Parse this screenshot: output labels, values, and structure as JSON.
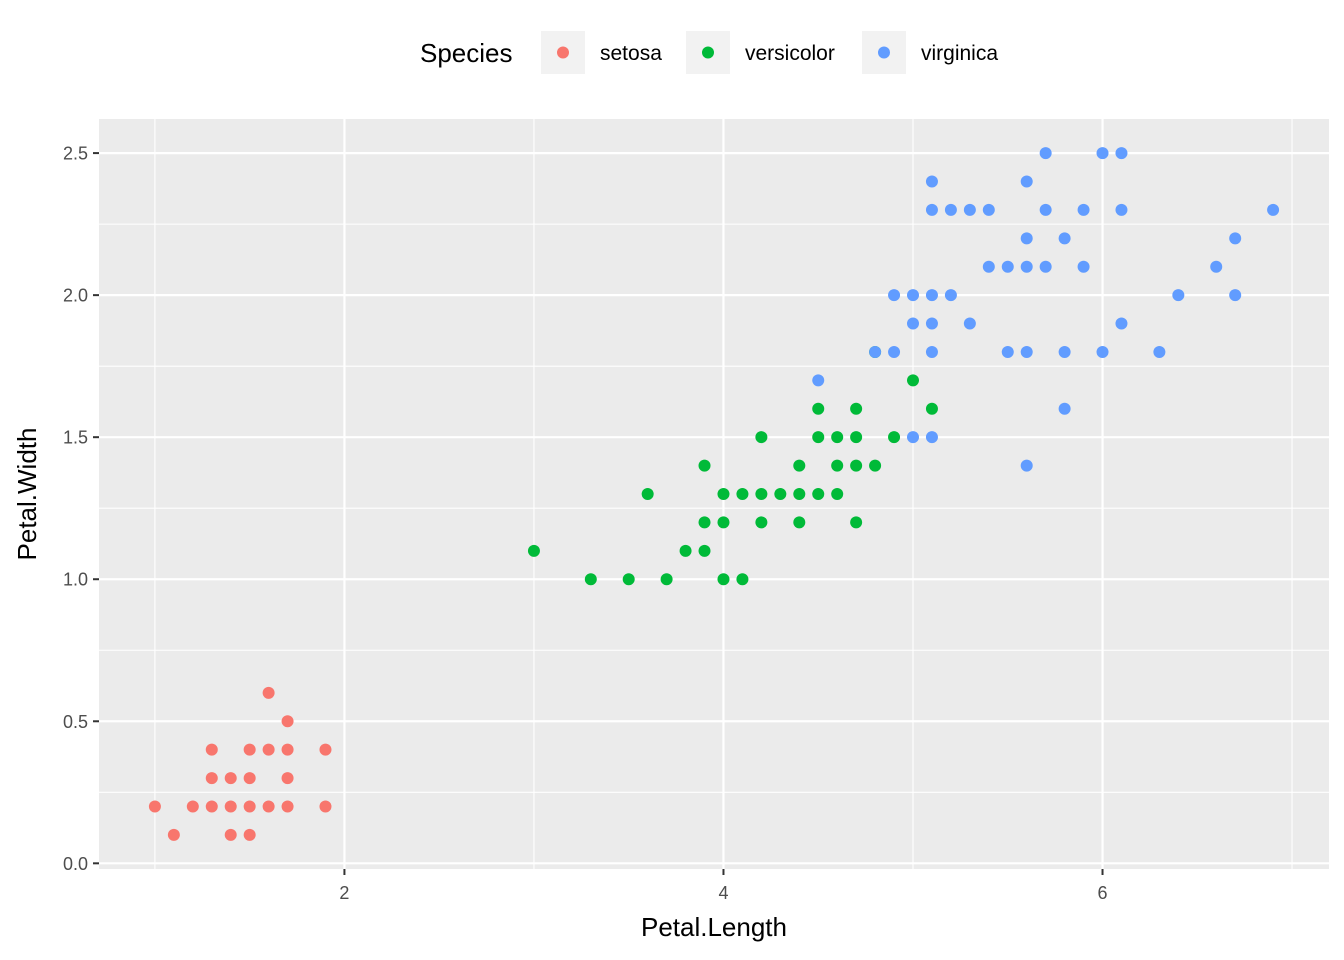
{
  "chart_data": {
    "type": "scatter",
    "title": "",
    "xlabel": "Petal.Length",
    "ylabel": "Petal.Width",
    "xlim": [
      0.705,
      7.195
    ],
    "ylim": [
      -0.02,
      2.62
    ],
    "x_ticks": [
      2,
      4,
      6
    ],
    "y_ticks": [
      0.0,
      0.5,
      1.0,
      1.5,
      2.0,
      2.5
    ],
    "x_tick_labels": [
      "2",
      "4",
      "6"
    ],
    "y_tick_labels": [
      "0.0",
      "0.5",
      "1.0",
      "1.5",
      "2.0",
      "2.5"
    ],
    "grid": true,
    "legend": {
      "title": "Species",
      "position": "top"
    },
    "series": [
      {
        "name": "setosa",
        "color": "#F8766D",
        "points": [
          [
            1.0,
            0.2
          ],
          [
            1.1,
            0.1
          ],
          [
            1.2,
            0.2
          ],
          [
            1.3,
            0.2
          ],
          [
            1.3,
            0.3
          ],
          [
            1.3,
            0.4
          ],
          [
            1.4,
            0.1
          ],
          [
            1.4,
            0.2
          ],
          [
            1.4,
            0.3
          ],
          [
            1.5,
            0.1
          ],
          [
            1.5,
            0.2
          ],
          [
            1.5,
            0.3
          ],
          [
            1.5,
            0.4
          ],
          [
            1.6,
            0.2
          ],
          [
            1.6,
            0.4
          ],
          [
            1.6,
            0.6
          ],
          [
            1.7,
            0.2
          ],
          [
            1.7,
            0.3
          ],
          [
            1.7,
            0.4
          ],
          [
            1.7,
            0.5
          ],
          [
            1.9,
            0.2
          ],
          [
            1.9,
            0.4
          ]
        ]
      },
      {
        "name": "versicolor",
        "color": "#00BA38",
        "points": [
          [
            3.0,
            1.1
          ],
          [
            3.3,
            1.0
          ],
          [
            3.5,
            1.0
          ],
          [
            3.6,
            1.3
          ],
          [
            3.7,
            1.0
          ],
          [
            3.8,
            1.1
          ],
          [
            3.9,
            1.1
          ],
          [
            3.9,
            1.2
          ],
          [
            3.9,
            1.4
          ],
          [
            4.0,
            1.0
          ],
          [
            4.0,
            1.2
          ],
          [
            4.0,
            1.3
          ],
          [
            4.1,
            1.0
          ],
          [
            4.1,
            1.3
          ],
          [
            4.2,
            1.2
          ],
          [
            4.2,
            1.3
          ],
          [
            4.2,
            1.5
          ],
          [
            4.3,
            1.3
          ],
          [
            4.4,
            1.2
          ],
          [
            4.4,
            1.3
          ],
          [
            4.4,
            1.4
          ],
          [
            4.5,
            1.3
          ],
          [
            4.5,
            1.5
          ],
          [
            4.5,
            1.6
          ],
          [
            4.6,
            1.3
          ],
          [
            4.6,
            1.4
          ],
          [
            4.6,
            1.5
          ],
          [
            4.7,
            1.2
          ],
          [
            4.7,
            1.4
          ],
          [
            4.7,
            1.5
          ],
          [
            4.7,
            1.6
          ],
          [
            4.8,
            1.4
          ],
          [
            4.8,
            1.8
          ],
          [
            4.9,
            1.5
          ],
          [
            5.0,
            1.7
          ],
          [
            5.1,
            1.6
          ]
        ]
      },
      {
        "name": "virginica",
        "color": "#619CFF",
        "points": [
          [
            4.5,
            1.7
          ],
          [
            4.8,
            1.8
          ],
          [
            4.9,
            1.8
          ],
          [
            4.9,
            2.0
          ],
          [
            5.0,
            1.5
          ],
          [
            5.0,
            1.9
          ],
          [
            5.0,
            2.0
          ],
          [
            5.1,
            1.5
          ],
          [
            5.1,
            1.8
          ],
          [
            5.1,
            1.9
          ],
          [
            5.1,
            2.0
          ],
          [
            5.1,
            2.3
          ],
          [
            5.1,
            2.4
          ],
          [
            5.2,
            2.0
          ],
          [
            5.2,
            2.3
          ],
          [
            5.3,
            1.9
          ],
          [
            5.3,
            2.3
          ],
          [
            5.4,
            2.1
          ],
          [
            5.4,
            2.3
          ],
          [
            5.5,
            1.8
          ],
          [
            5.5,
            2.1
          ],
          [
            5.6,
            1.4
          ],
          [
            5.6,
            1.8
          ],
          [
            5.6,
            2.1
          ],
          [
            5.6,
            2.2
          ],
          [
            5.6,
            2.4
          ],
          [
            5.7,
            2.1
          ],
          [
            5.7,
            2.3
          ],
          [
            5.7,
            2.5
          ],
          [
            5.8,
            1.6
          ],
          [
            5.8,
            1.8
          ],
          [
            5.8,
            2.2
          ],
          [
            5.9,
            2.1
          ],
          [
            5.9,
            2.3
          ],
          [
            6.0,
            1.8
          ],
          [
            6.0,
            2.5
          ],
          [
            6.1,
            1.9
          ],
          [
            6.1,
            2.3
          ],
          [
            6.1,
            2.5
          ],
          [
            6.3,
            1.8
          ],
          [
            6.4,
            2.0
          ],
          [
            6.6,
            2.1
          ],
          [
            6.7,
            2.0
          ],
          [
            6.7,
            2.2
          ],
          [
            6.9,
            2.3
          ]
        ]
      }
    ]
  },
  "colors": {
    "panel_background": "#EBEBEB",
    "grid_major": "#FFFFFF",
    "legend_key_background": "#F2F2F2"
  }
}
